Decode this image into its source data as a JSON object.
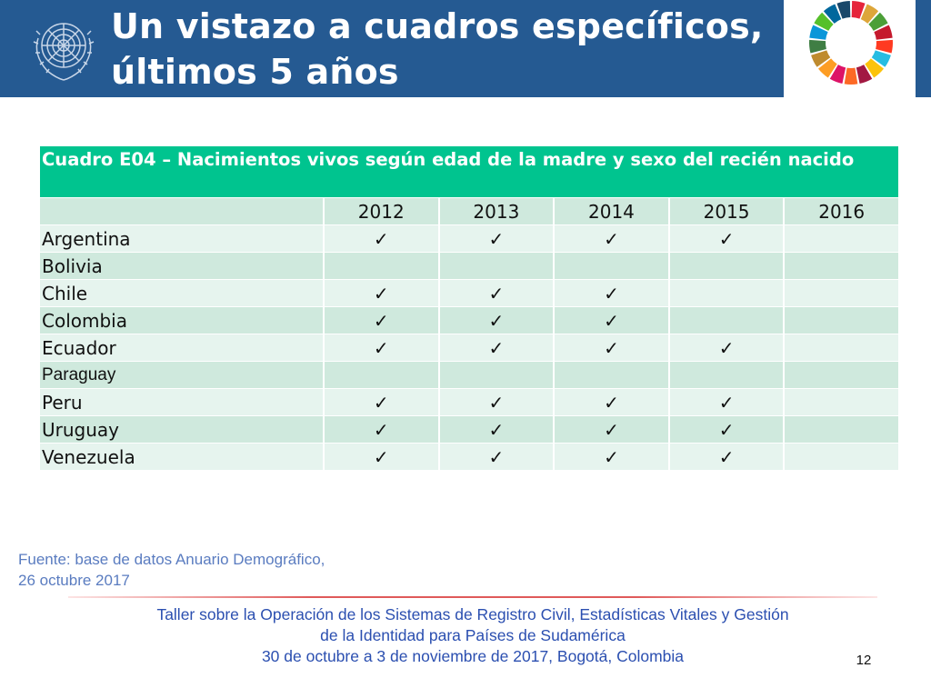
{
  "slide": {
    "title_line1": "Un vistazo a cuadros específicos,",
    "title_line2": "últimos 5 años",
    "page_number": "12"
  },
  "table": {
    "caption": "Cuadro E04 – Nacimientos vivos según edad de la madre y sexo del recién nacido",
    "years": [
      "2012",
      "2013",
      "2014",
      "2015",
      "2016"
    ],
    "check_symbol": "✓",
    "rows": [
      {
        "country": "Argentina",
        "checks": [
          "✓",
          "✓",
          "✓",
          "✓",
          ""
        ]
      },
      {
        "country": "Bolivia",
        "checks": [
          "",
          "",
          "",
          "",
          ""
        ]
      },
      {
        "country": "Chile",
        "checks": [
          "✓",
          "✓",
          "✓",
          "",
          ""
        ]
      },
      {
        "country": "Colombia",
        "checks": [
          "✓",
          "✓",
          "✓",
          "",
          ""
        ]
      },
      {
        "country": "Ecuador",
        "checks": [
          "✓",
          "✓",
          "✓",
          "✓",
          ""
        ]
      },
      {
        "country": "Paraguay",
        "checks": [
          "",
          "",
          "",
          "",
          ""
        ]
      },
      {
        "country": "Peru",
        "checks": [
          "✓",
          "✓",
          "✓",
          "✓",
          ""
        ]
      },
      {
        "country": "Uruguay",
        "checks": [
          "✓",
          "✓",
          "✓",
          "✓",
          ""
        ]
      },
      {
        "country": "Venezuela",
        "checks": [
          "✓",
          "✓",
          "✓",
          "✓",
          ""
        ]
      }
    ]
  },
  "source": {
    "line1": "Fuente: base de datos Anuario Demográfico,",
    "line2": "26 octubre 2017"
  },
  "footer": {
    "line1": "Taller sobre la Operación de los Sistemas de Registro Civil, Estadísticas Vitales y Gestión",
    "line2": "de la Identidad para Países de Sudamérica",
    "line3": "30 de octubre a 3 de noviembre de 2017, Bogotá, Colombia"
  },
  "colors": {
    "header_blue": "#255a92",
    "caption_green": "#00c48f",
    "row_dark": "#cfe9dd",
    "row_light": "#e6f4ee",
    "source_text": "#5a7cc0",
    "footer_text": "#2b4fb0"
  },
  "icons": {
    "left_logo": "un-emblem-icon",
    "right_logo": "sdg-wheel-icon"
  }
}
